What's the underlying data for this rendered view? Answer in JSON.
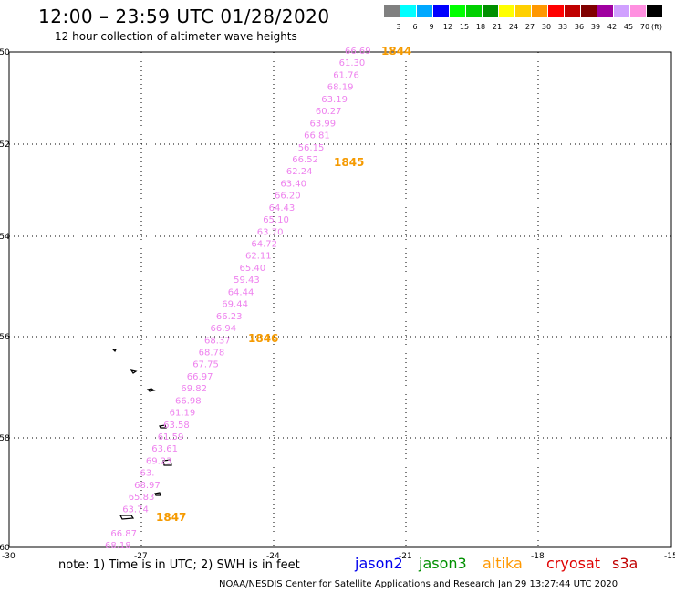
{
  "header": {
    "title": "12:00 – 23:59 UTC 01/28/2020",
    "subtitle": "12 hour collection of altimeter wave heights"
  },
  "legend": {
    "unit": "(ft)",
    "items": [
      {
        "label": "3",
        "color": "#808080"
      },
      {
        "label": "6",
        "color": "#00ffff"
      },
      {
        "label": "9",
        "color": "#00a8ff"
      },
      {
        "label": "12",
        "color": "#0000ff"
      },
      {
        "label": "15",
        "color": "#00ff00"
      },
      {
        "label": "18",
        "color": "#00d000"
      },
      {
        "label": "21",
        "color": "#009000"
      },
      {
        "label": "24",
        "color": "#ffff00"
      },
      {
        "label": "27",
        "color": "#ffd000"
      },
      {
        "label": "30",
        "color": "#ff9800"
      },
      {
        "label": "33",
        "color": "#ff0000"
      },
      {
        "label": "36",
        "color": "#c00000"
      },
      {
        "label": "39",
        "color": "#800000"
      },
      {
        "label": "42",
        "color": "#a000a0"
      },
      {
        "label": "45",
        "color": "#d0a0ff"
      },
      {
        "label": "70",
        "color": "#ff90e0"
      },
      {
        "label": "",
        "color": "#000000"
      }
    ]
  },
  "map": {
    "lat_labels": [
      "-50",
      "-52",
      "-54",
      "-56",
      "-58",
      "-60"
    ],
    "lon_labels": [
      "-30",
      "-27",
      "-24",
      "-21",
      "-18",
      "-15"
    ],
    "wave_color": "#ee82ee",
    "pass_color": "#f59a00",
    "wave_heights": [
      "66.69",
      "61.30",
      "61.76",
      "68.19",
      "63.19",
      "60.27",
      "63.99",
      "66.81",
      "56.15",
      "66.52",
      "62.24",
      "63.40",
      "66.20",
      "64.43",
      "65.10",
      "63.70",
      "64.72",
      "62.11",
      "65.40",
      "59.43",
      "64.44",
      "69.44",
      "66.23",
      "66.94",
      "68.37",
      "68.78",
      "67.75",
      "66.97",
      "69.82",
      "66.98",
      "61.19",
      "63.58",
      "61.59",
      "63.61",
      "69.23",
      "63.",
      "68.97",
      "65.83",
      "63.74",
      "",
      "66.87",
      "68.18"
    ],
    "pass_numbers": [
      "1844",
      "1845",
      "1846",
      "1847"
    ]
  },
  "footer": {
    "note": "note: 1) Time is in UTC; 2) SWH is in feet",
    "satellites": [
      {
        "name": "jason2",
        "color": "#0000ee"
      },
      {
        "name": "jason3",
        "color": "#009000"
      },
      {
        "name": "altika",
        "color": "#ff9800"
      },
      {
        "name": "cryosat",
        "color": "#e00000"
      },
      {
        "name": "s3a",
        "color": "#c00000"
      }
    ],
    "credit": "NOAA/NESDIS Center for Satellite Applications and Research    Jan 29 13:27:44 UTC 2020"
  }
}
